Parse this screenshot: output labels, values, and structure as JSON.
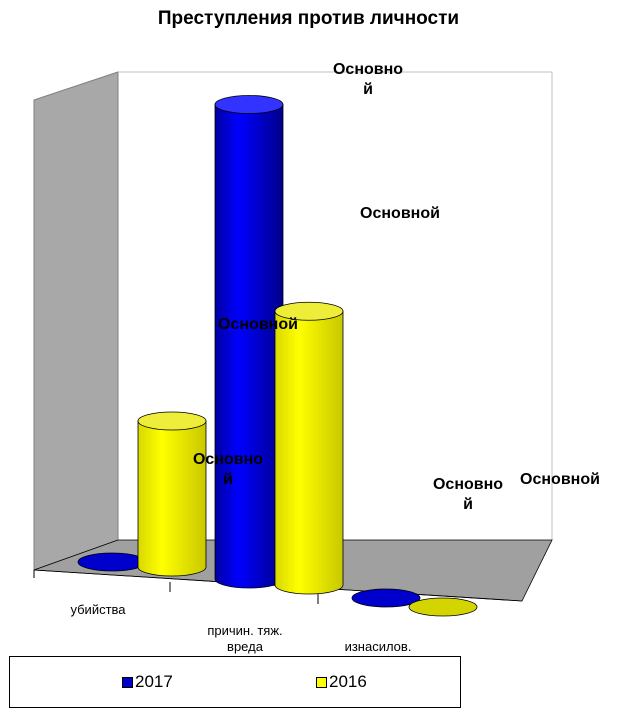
{
  "chart_data": {
    "type": "bar",
    "style": "3d-cylinder",
    "title": "Преступления против личности",
    "categories": [
      "убийства",
      "причин. тяж.\nвреда",
      "изнасилов."
    ],
    "series": [
      {
        "name": "2017",
        "color": "#0000cc",
        "values": [
          0,
          13,
          0
        ]
      },
      {
        "name": "2016",
        "color": "#ffff00",
        "values": [
          4,
          7.5,
          0
        ]
      }
    ],
    "data_labels": [
      [
        "Основно\nй",
        "Основно\nй",
        "Основно\nй"
      ],
      [
        "Основной",
        "Основной",
        "Основной"
      ]
    ],
    "ylim": [
      0,
      14
    ],
    "grid": false,
    "legend_position": "bottom"
  }
}
